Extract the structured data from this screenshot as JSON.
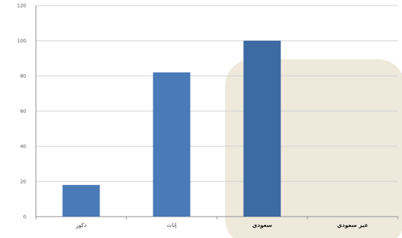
{
  "chart_data": {
    "type": "bar",
    "categories": [
      "ذكور",
      "إناث",
      "سعودي",
      "غير سعودي"
    ],
    "values": [
      18,
      82,
      100,
      0
    ],
    "ylim": [
      0,
      120
    ],
    "yticks": [
      0,
      20,
      40,
      60,
      80,
      100,
      120
    ],
    "grid": true,
    "legend": "none",
    "colors": {
      "bar": "#4a7ab8",
      "bar_emphasis": "#3e6aa4",
      "gridline": "#cfcfcf",
      "axis": "#8a8a8a",
      "highlight_panel": "#efe9dc"
    }
  }
}
